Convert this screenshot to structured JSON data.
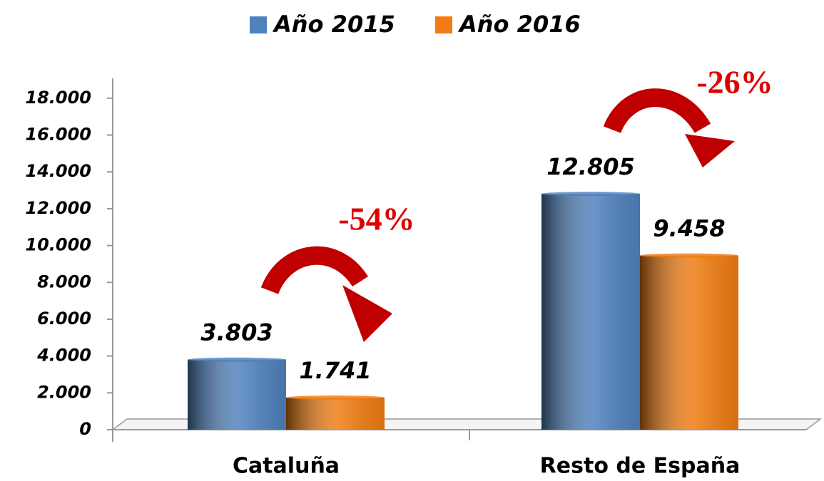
{
  "chart_data": {
    "type": "bar",
    "categories": [
      "Cataluña",
      "Resto de España"
    ],
    "series": [
      {
        "name": "Año 2015",
        "color": "#4f81bd",
        "values": [
          3803,
          12805
        ],
        "value_labels": [
          "3.803",
          "12.805"
        ]
      },
      {
        "name": "Año 2016",
        "color": "#f07c12",
        "values": [
          1741,
          9458
        ],
        "value_labels": [
          "1.741",
          "9.458"
        ]
      }
    ],
    "ylim": [
      0,
      19000
    ],
    "yticks": [
      0,
      {
        "value": 2000,
        "label": "2.000"
      },
      {
        "value": 4000,
        "label": "4.000"
      },
      {
        "value": 6000,
        "label": "6.000"
      },
      {
        "value": 8000,
        "label": "8.000"
      },
      {
        "value": 10000,
        "label": "10.000"
      },
      {
        "value": 12000,
        "label": "12.000"
      },
      {
        "value": 14000,
        "label": "14.000"
      },
      {
        "value": 16000,
        "label": "16.000"
      },
      {
        "value": 18000,
        "label": "18.000"
      }
    ],
    "annotations": [
      "-54%",
      "-26%"
    ],
    "legend": "top"
  }
}
